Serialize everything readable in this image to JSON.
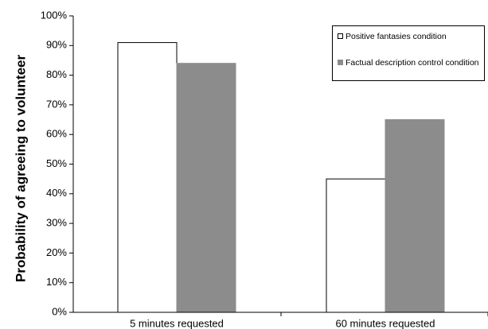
{
  "chart_data": {
    "type": "bar",
    "ylabel": "Probability of agreeing to volunteer",
    "xlabel": "",
    "categories": [
      "5 minutes requested",
      "60 minutes requested"
    ],
    "series": [
      {
        "name": "Positive fantasies condition",
        "values": [
          91,
          45
        ],
        "color": "#ffffff",
        "stroke": "#000000"
      },
      {
        "name": "Factual description control condition",
        "values": [
          84,
          65
        ],
        "color": "#8c8c8c",
        "stroke": "#8c8c8c"
      }
    ],
    "yticks": [
      "0%",
      "10%",
      "20%",
      "30%",
      "40%",
      "50%",
      "60%",
      "70%",
      "80%",
      "90%",
      "100%"
    ],
    "ylim": [
      0,
      100
    ],
    "grid": false,
    "legend_position": "top-right"
  }
}
